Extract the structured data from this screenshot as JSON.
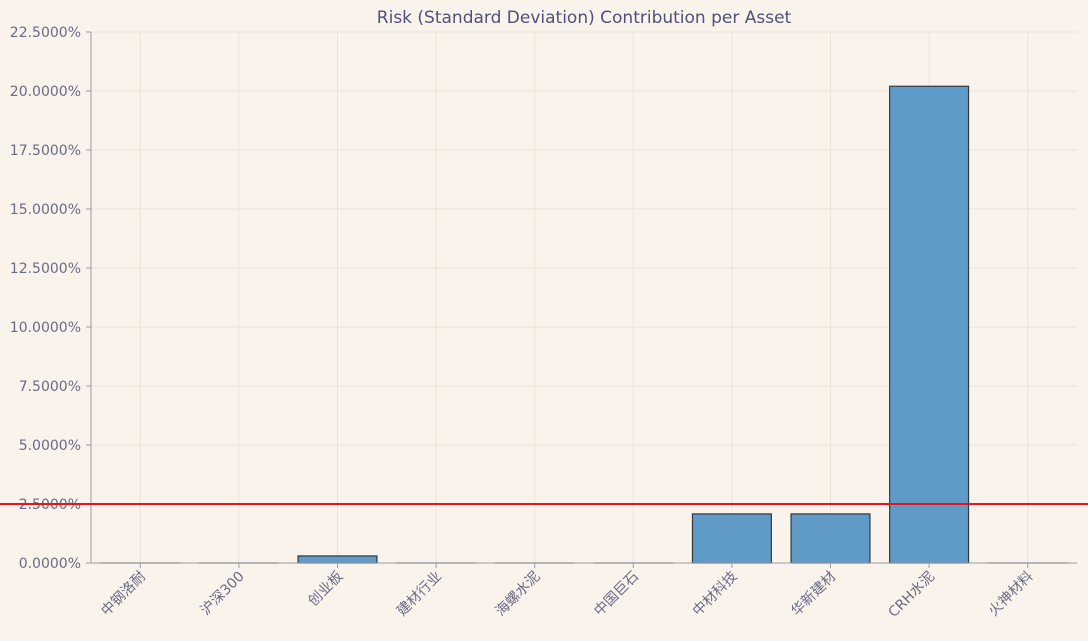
{
  "chart_data": {
    "type": "bar",
    "title": "Risk (Standard Deviation) Contribution per Asset",
    "xlabel": "",
    "ylabel": "",
    "categories": [
      "中钢洛耐",
      "沪深300",
      "创业板",
      "建材行业",
      "海螺水泥",
      "中国巨石",
      "中材科技",
      "华新建材",
      "CRH水泥",
      "火神材料"
    ],
    "values": [
      0.0,
      0.0,
      0.3,
      0.0,
      0.0,
      0.0,
      2.08,
      2.08,
      20.2,
      0.0
    ],
    "ylim": [
      0,
      22.5
    ],
    "yticks": [
      0,
      2.5,
      5,
      7.5,
      10,
      12.5,
      15,
      17.5,
      20,
      22.5
    ],
    "ytick_labels": [
      "0.0000%",
      "2.5000%",
      "5.0000%",
      "7.5000%",
      "10.0000%",
      "12.5000%",
      "15.0000%",
      "17.5000%",
      "20.0000%",
      "22.5000%"
    ],
    "reference_line": {
      "y": 2.5,
      "color": "#e8141b"
    },
    "bar_color": "#5f9bc6",
    "bar_edge_color": "#2e3a44",
    "grid": true,
    "legend": "none"
  }
}
